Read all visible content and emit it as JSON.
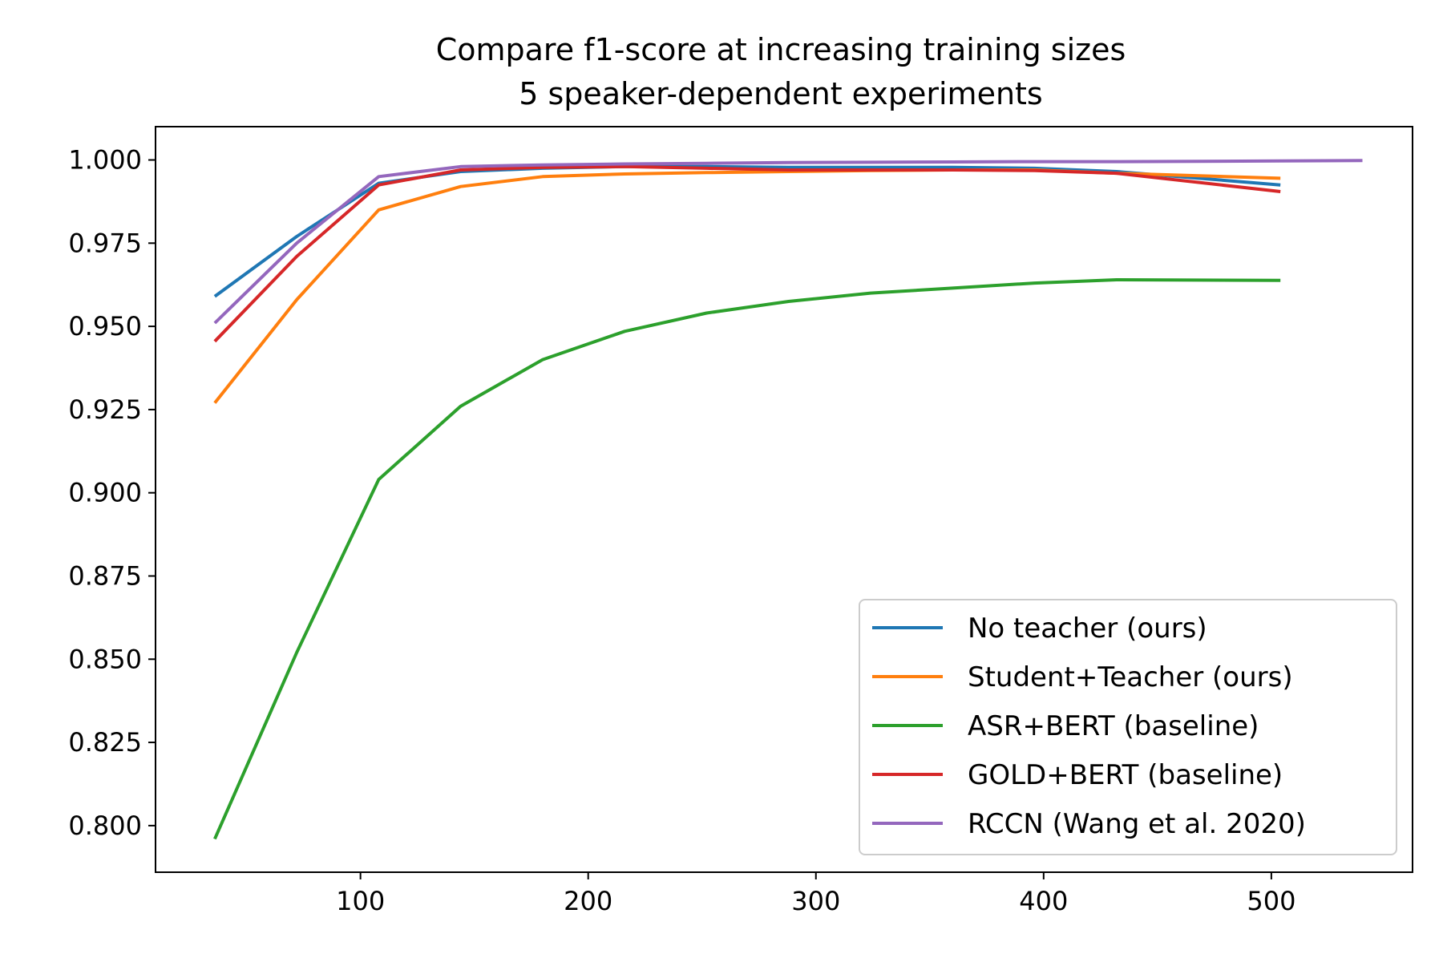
{
  "chart_data": {
    "type": "line",
    "title": "Compare f1-score at increasing training sizes",
    "subtitle": "5 speaker-dependent experiments",
    "xlabel": "",
    "ylabel": "",
    "xlim": [
      10,
      562
    ],
    "ylim": [
      0.786,
      1.01
    ],
    "x_ticks": [
      100,
      200,
      300,
      400,
      500
    ],
    "y_ticks": [
      0.8,
      0.825,
      0.85,
      0.875,
      0.9,
      0.925,
      0.95,
      0.975,
      1.0
    ],
    "x_tick_labels": [
      "100",
      "200",
      "300",
      "400",
      "500"
    ],
    "y_tick_labels": [
      "0.800",
      "0.825",
      "0.850",
      "0.875",
      "0.900",
      "0.925",
      "0.950",
      "0.975",
      "1.000"
    ],
    "grid": false,
    "legend_position": "lower-right",
    "series": [
      {
        "name": "No teacher (ours)",
        "color": "#1f77b4",
        "x": [
          36,
          72,
          108,
          144,
          180,
          216,
          252,
          288,
          324,
          360,
          396,
          432,
          504
        ],
        "y": [
          0.959,
          0.977,
          0.993,
          0.9965,
          0.9975,
          0.998,
          0.998,
          0.9978,
          0.9978,
          0.9978,
          0.9975,
          0.9965,
          0.9925
        ]
      },
      {
        "name": "Student+Teacher (ours)",
        "color": "#ff7f0e",
        "x": [
          36,
          72,
          108,
          144,
          180,
          216,
          252,
          288,
          324,
          360,
          396,
          432,
          504
        ],
        "y": [
          0.927,
          0.958,
          0.985,
          0.992,
          0.995,
          0.9958,
          0.9962,
          0.9965,
          0.9968,
          0.997,
          0.997,
          0.996,
          0.9945
        ]
      },
      {
        "name": "ASR+BERT (baseline)",
        "color": "#2ca02c",
        "x": [
          36,
          72,
          108,
          144,
          180,
          216,
          252,
          288,
          324,
          360,
          396,
          432,
          504
        ],
        "y": [
          0.796,
          0.852,
          0.904,
          0.926,
          0.94,
          0.9485,
          0.954,
          0.9575,
          0.96,
          0.9615,
          0.963,
          0.964,
          0.9638
        ]
      },
      {
        "name": "GOLD+BERT (baseline)",
        "color": "#d62728",
        "x": [
          36,
          72,
          108,
          144,
          180,
          216,
          252,
          288,
          324,
          360,
          396,
          432,
          504
        ],
        "y": [
          0.9455,
          0.971,
          0.9925,
          0.997,
          0.9978,
          0.998,
          0.9975,
          0.997,
          0.997,
          0.997,
          0.9968,
          0.996,
          0.9905
        ]
      },
      {
        "name": "RCCN (Wang et al. 2020)",
        "color": "#9467bd",
        "x": [
          36,
          72,
          108,
          144,
          180,
          216,
          252,
          288,
          324,
          360,
          396,
          432,
          468,
          504,
          540
        ],
        "y": [
          0.951,
          0.975,
          0.995,
          0.998,
          0.9985,
          0.9988,
          0.999,
          0.9992,
          0.9993,
          0.9994,
          0.9995,
          0.9995,
          0.9996,
          0.9997,
          0.9998
        ]
      }
    ]
  }
}
